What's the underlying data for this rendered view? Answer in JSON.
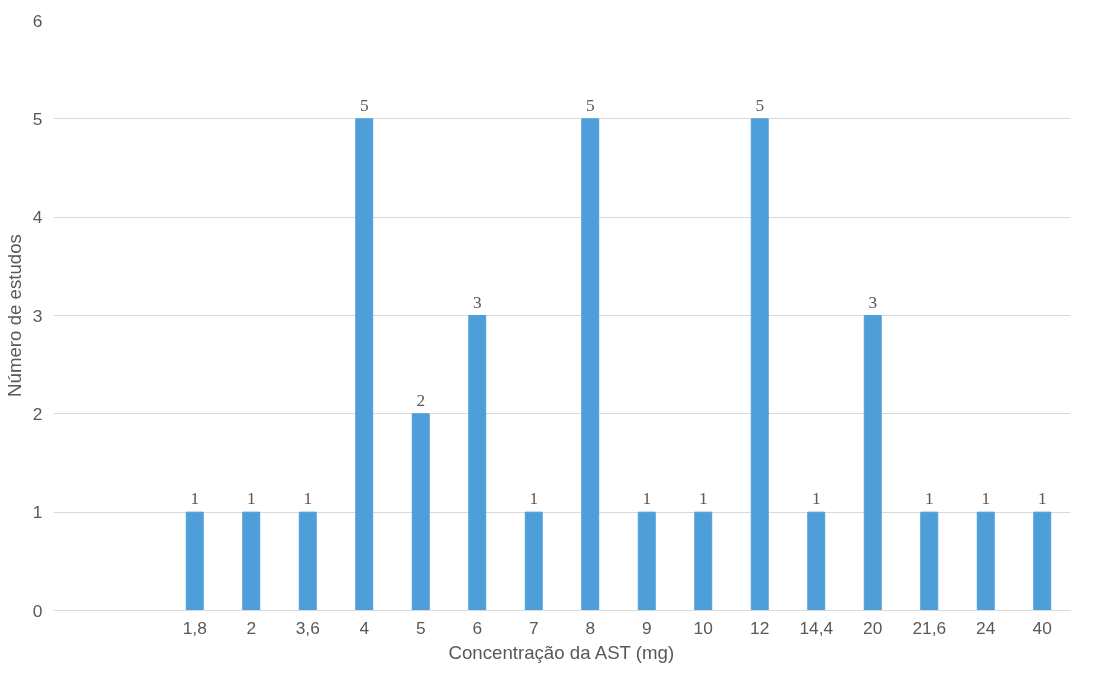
{
  "chart_data": {
    "type": "bar",
    "xlabel": "Concentração da AST (mg)",
    "ylabel": "Número de estudos",
    "categories": [
      null,
      null,
      "1,8",
      "2",
      "3,6",
      "4",
      "5",
      "6",
      "7",
      "8",
      "9",
      "10",
      "12",
      "14,4",
      "20",
      "21,6",
      "24",
      "40"
    ],
    "values": [
      null,
      null,
      1,
      1,
      1,
      5,
      2,
      3,
      1,
      5,
      1,
      1,
      5,
      1,
      3,
      1,
      1,
      1
    ],
    "color": "#4e9fd9",
    "ylim": [
      0,
      6
    ],
    "yticks": [
      0,
      1,
      2,
      3,
      4,
      5,
      6
    ],
    "grid": "y",
    "data_labels": true
  }
}
